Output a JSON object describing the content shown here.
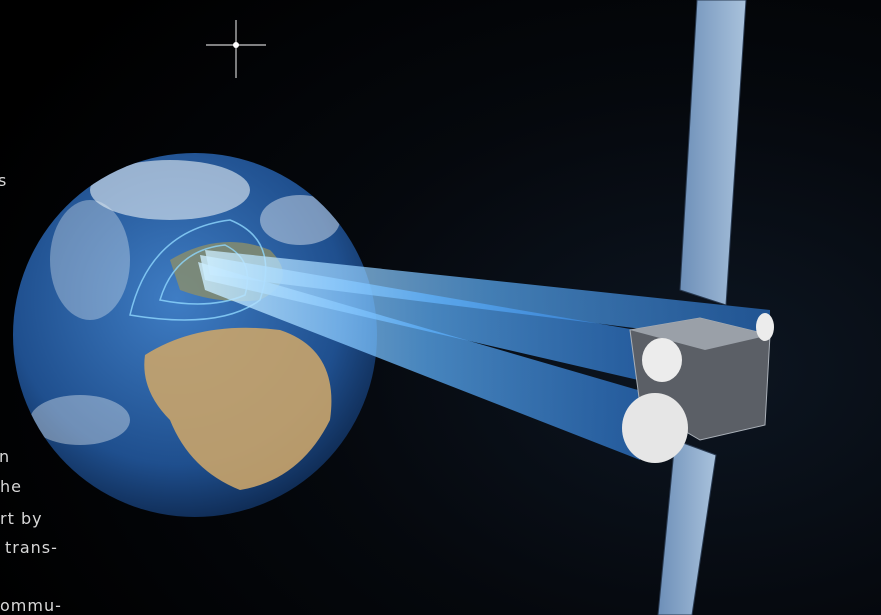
{
  "text_fragments": [
    "s",
    "n",
    "he",
    "rt by",
    "trans-",
    "ommu-"
  ]
}
